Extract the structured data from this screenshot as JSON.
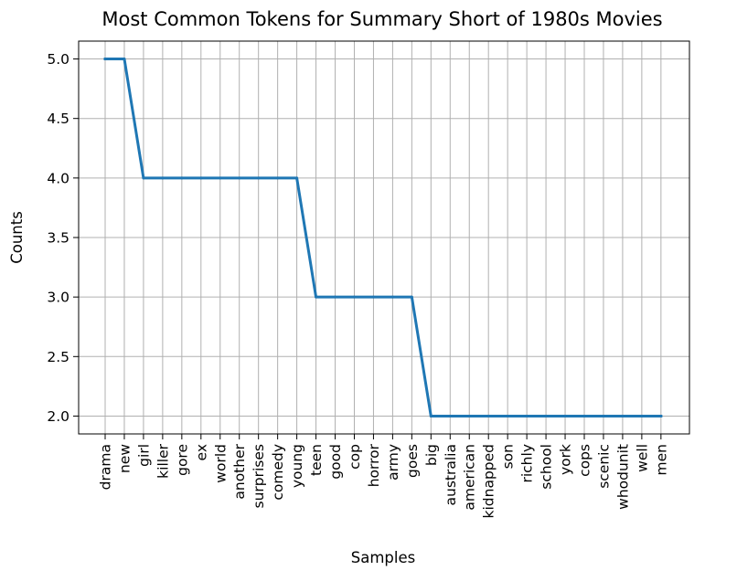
{
  "chart_data": {
    "type": "line",
    "title": "Most Common Tokens for Summary Short of 1980s Movies",
    "xlabel": "Samples",
    "ylabel": "Counts",
    "categories": [
      "drama",
      "new",
      "girl",
      "killer",
      "gore",
      "ex",
      "world",
      "another",
      "surprises",
      "comedy",
      "young",
      "teen",
      "good",
      "cop",
      "horror",
      "army",
      "goes",
      "big",
      "australia",
      "american",
      "kidnapped",
      "son",
      "richly",
      "school",
      "york",
      "cops",
      "scenic",
      "whodunit",
      "well",
      "men"
    ],
    "values": [
      5,
      5,
      4,
      4,
      4,
      4,
      4,
      4,
      4,
      4,
      4,
      3,
      3,
      3,
      3,
      3,
      3,
      2,
      2,
      2,
      2,
      2,
      2,
      2,
      2,
      2,
      2,
      2,
      2,
      2
    ],
    "ylim": [
      1.85,
      5.15
    ],
    "yticks": [
      "2.0",
      "2.5",
      "3.0",
      "3.5",
      "4.0",
      "4.5",
      "5.0"
    ],
    "grid": true,
    "legend": "none",
    "series_color": "#1f77b4"
  }
}
